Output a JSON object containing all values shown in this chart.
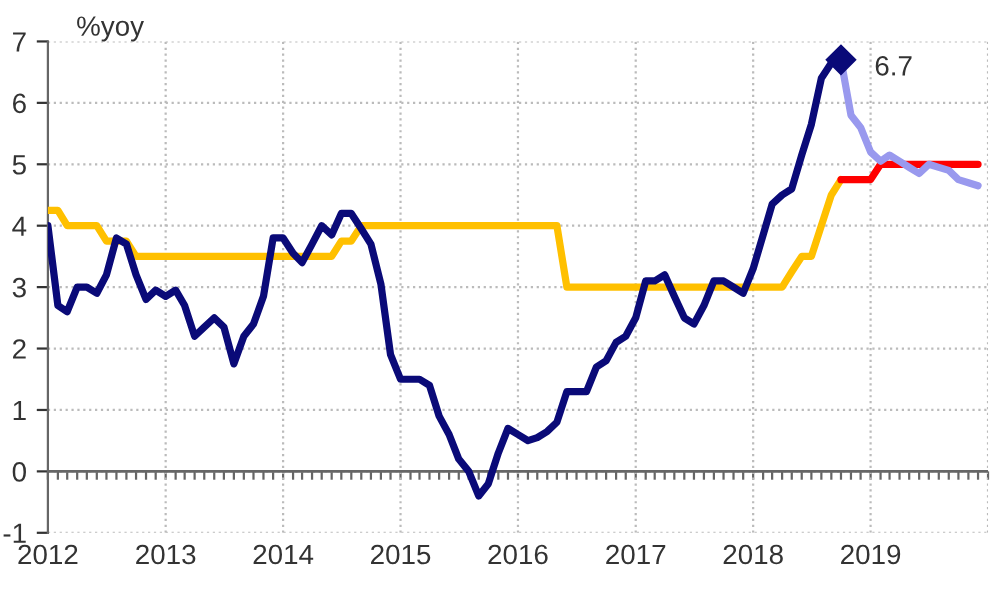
{
  "chart_data": {
    "type": "line",
    "ylabel": "%yoy",
    "xlim": [
      "2012-01-01",
      "2020-01-01"
    ],
    "xticks": [
      {
        "value": "2012-01-01",
        "label": "2012"
      },
      {
        "value": "2013-01-01",
        "label": "2013"
      },
      {
        "value": "2014-01-01",
        "label": "2014"
      },
      {
        "value": "2015-01-01",
        "label": "2015"
      },
      {
        "value": "2016-01-01",
        "label": "2016"
      },
      {
        "value": "2017-01-01",
        "label": "2017"
      },
      {
        "value": "2018-01-01",
        "label": "2018"
      },
      {
        "value": "2019-01-01",
        "label": "2019"
      },
      {
        "value": "2020-01-01",
        "label": null
      }
    ],
    "ylim": [
      -1,
      7
    ],
    "yticks": [
      -1,
      0,
      1,
      2,
      3,
      4,
      5,
      6,
      7
    ],
    "grid": true,
    "legend": false,
    "line_style": "solid",
    "ref_lines": [
      {
        "axis": "y",
        "value": 0,
        "color": "#666666"
      }
    ],
    "annotations": [
      {
        "text": "6.7",
        "x": "2018-10",
        "y": 6.7
      }
    ],
    "series": [
      {
        "color": "#ffc000",
        "x": [
          "2012-01",
          "2012-02",
          "2012-03",
          "2012-06",
          "2012-07",
          "2012-09",
          "2012-10",
          "2014-06",
          "2014-07",
          "2014-08",
          "2014-09",
          "2016-05",
          "2016-06",
          "2018-04",
          "2018-05",
          "2018-06",
          "2018-07",
          "2018-08",
          "2018-09",
          "2018-10"
        ],
        "values": [
          4.25,
          4.25,
          4.0,
          4.0,
          3.75,
          3.75,
          3.5,
          3.5,
          3.75,
          3.75,
          4.0,
          4.0,
          3.0,
          3.0,
          3.25,
          3.5,
          3.5,
          4.0,
          4.5,
          4.75
        ]
      },
      {
        "color": "#ff0000",
        "x": [
          "2018-10",
          "2019-01",
          "2019-02",
          "2019-12"
        ],
        "values": [
          4.75,
          4.75,
          5.0,
          5.0
        ]
      },
      {
        "color": "#9999ee",
        "x": [
          "2018-10",
          "2018-11",
          "2018-12",
          "2019-01",
          "2019-02",
          "2019-03",
          "2019-04",
          "2019-05",
          "2019-06",
          "2019-07",
          "2019-08",
          "2019-09",
          "2019-10",
          "2019-11",
          "2019-12"
        ],
        "values": [
          6.7,
          5.8,
          5.6,
          5.2,
          5.05,
          5.15,
          5.05,
          4.95,
          4.85,
          5.0,
          4.95,
          4.9,
          4.75,
          4.7,
          4.65
        ]
      },
      {
        "color": "#0a0a78",
        "x": [
          "2012-01",
          "2012-02",
          "2012-03",
          "2012-04",
          "2012-05",
          "2012-06",
          "2012-07",
          "2012-08",
          "2012-09",
          "2012-10",
          "2012-11",
          "2012-12",
          "2013-01",
          "2013-02",
          "2013-03",
          "2013-04",
          "2013-05",
          "2013-06",
          "2013-07",
          "2013-08",
          "2013-09",
          "2013-10",
          "2013-11",
          "2013-12",
          "2014-01",
          "2014-02",
          "2014-03",
          "2014-04",
          "2014-05",
          "2014-06",
          "2014-07",
          "2014-08",
          "2014-09",
          "2014-10",
          "2014-11",
          "2014-12",
          "2015-01",
          "2015-02",
          "2015-03",
          "2015-04",
          "2015-05",
          "2015-06",
          "2015-07",
          "2015-08",
          "2015-09",
          "2015-10",
          "2015-11",
          "2015-12",
          "2016-01",
          "2016-02",
          "2016-03",
          "2016-04",
          "2016-05",
          "2016-06",
          "2016-07",
          "2016-08",
          "2016-09",
          "2016-10",
          "2016-11",
          "2016-12",
          "2017-01",
          "2017-02",
          "2017-03",
          "2017-04",
          "2017-05",
          "2017-06",
          "2017-07",
          "2017-08",
          "2017-09",
          "2017-10",
          "2017-11",
          "2017-12",
          "2018-01",
          "2018-02",
          "2018-03",
          "2018-04",
          "2018-05",
          "2018-06",
          "2018-07",
          "2018-08",
          "2018-09",
          "2018-10"
        ],
        "values": [
          4.0,
          2.7,
          2.6,
          3.0,
          3.0,
          2.9,
          3.2,
          3.8,
          3.7,
          3.2,
          2.8,
          2.95,
          2.85,
          2.95,
          2.7,
          2.2,
          2.35,
          2.5,
          2.35,
          1.75,
          2.2,
          2.4,
          2.85,
          3.8,
          3.8,
          3.55,
          3.4,
          3.7,
          4.0,
          3.85,
          4.2,
          4.2,
          3.95,
          3.7,
          3.05,
          1.9,
          1.5,
          1.5,
          1.5,
          1.4,
          0.9,
          0.6,
          0.2,
          0.0,
          -0.4,
          -0.2,
          0.3,
          0.7,
          0.6,
          0.5,
          0.55,
          0.65,
          0.8,
          1.3,
          1.3,
          1.3,
          1.7,
          1.8,
          2.1,
          2.2,
          2.5,
          3.1,
          3.1,
          3.2,
          2.85,
          2.5,
          2.4,
          2.7,
          3.1,
          3.1,
          3.0,
          2.9,
          3.3,
          3.85,
          4.35,
          4.5,
          4.6,
          5.15,
          5.65,
          6.4,
          6.65,
          6.7
        ]
      }
    ]
  }
}
